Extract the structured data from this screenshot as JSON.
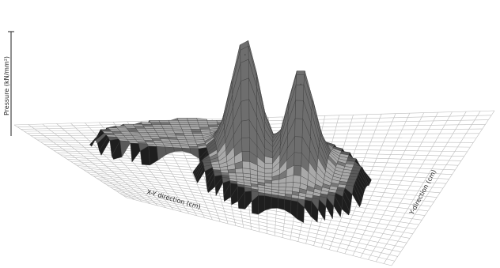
{
  "chart_data": {
    "type": "surface",
    "title": "",
    "zlabel": "Pressure (kN/mm²)",
    "xlabel": "X-Y direction (cm)",
    "ylabel": "Y-direction (cm)",
    "zlim": [
      0,
      1
    ],
    "grid": true,
    "surface": {
      "feature_height": 0.15,
      "peaks": [
        {
          "x": 0.47,
          "y": 0.46,
          "height": 1.0
        },
        {
          "x": 0.62,
          "y": 0.53,
          "height": 0.85
        }
      ]
    }
  }
}
